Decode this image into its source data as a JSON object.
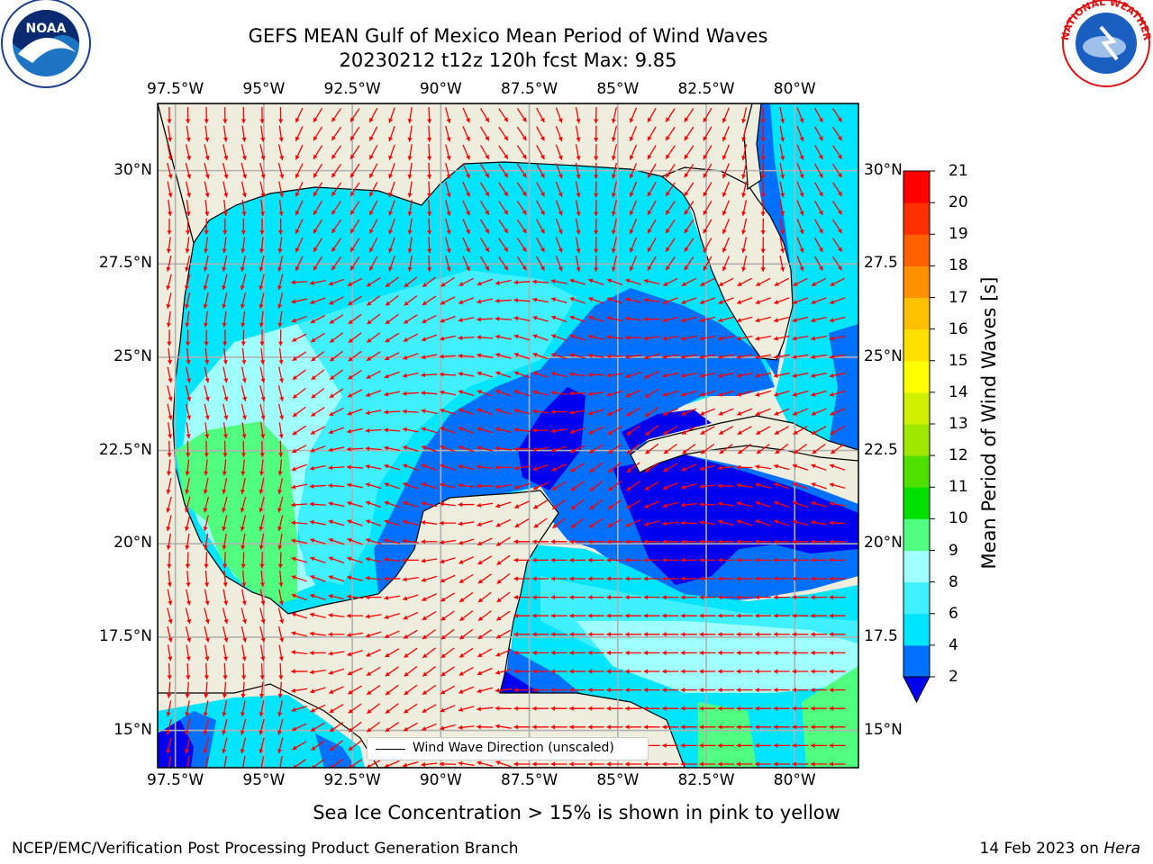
{
  "title": {
    "line1": "GEFS MEAN Gulf of Mexico Mean Period of Wind Waves",
    "line2": "20230212 t12z 120h fcst   Max: 9.85"
  },
  "logos": {
    "left": "NOAA",
    "right": "NATIONAL WEATHER SERVICE"
  },
  "map": {
    "extent": {
      "lon": [
        -98.0,
        -78.2
      ],
      "lat": [
        14.0,
        31.8
      ]
    },
    "lon_labels": [
      "97.5°W",
      "95°W",
      "92.5°W",
      "90°W",
      "87.5°W",
      "85°W",
      "82.5°W",
      "80°W"
    ],
    "lat_labels_left": [
      "30°N",
      "27.5°N",
      "25°N",
      "22.5°N",
      "20°N",
      "17.5°N",
      "15°N"
    ],
    "lat_labels_right": [
      "30°N",
      "27.5",
      "25°N",
      "22.5",
      "20°N",
      "17.5",
      "15°N"
    ],
    "colors": {
      "land": "#efedde",
      "grid": "#b0b0b0",
      "arrow": "#ff0000",
      "coast": "#000000"
    },
    "legend_label": "Wind Wave Direction (unscaled)"
  },
  "colorbar": {
    "title": "Mean Period of Wind Waves [s]",
    "ticks": [
      "2",
      "4",
      "6",
      "8",
      "9",
      "10",
      "11",
      "12",
      "13",
      "14",
      "15",
      "16",
      "17",
      "18",
      "19",
      "20",
      "21"
    ],
    "colors": [
      "#0000ee",
      "#0070ff",
      "#00e5ff",
      "#40f0ff",
      "#a0ffff",
      "#50ff80",
      "#00e000",
      "#50e000",
      "#a0e800",
      "#d0f000",
      "#ffff00",
      "#ffe000",
      "#ffc000",
      "#ff9000",
      "#ff6000",
      "#ff3000",
      "#ff0000"
    ]
  },
  "note": "Sea Ice Concentration > 15% is shown in pink to yellow",
  "footer": {
    "left": "NCEP/EMC/Verification Post Processing Product Generation Branch",
    "date": "14 Feb 2023 on",
    "machine": "Hera"
  }
}
